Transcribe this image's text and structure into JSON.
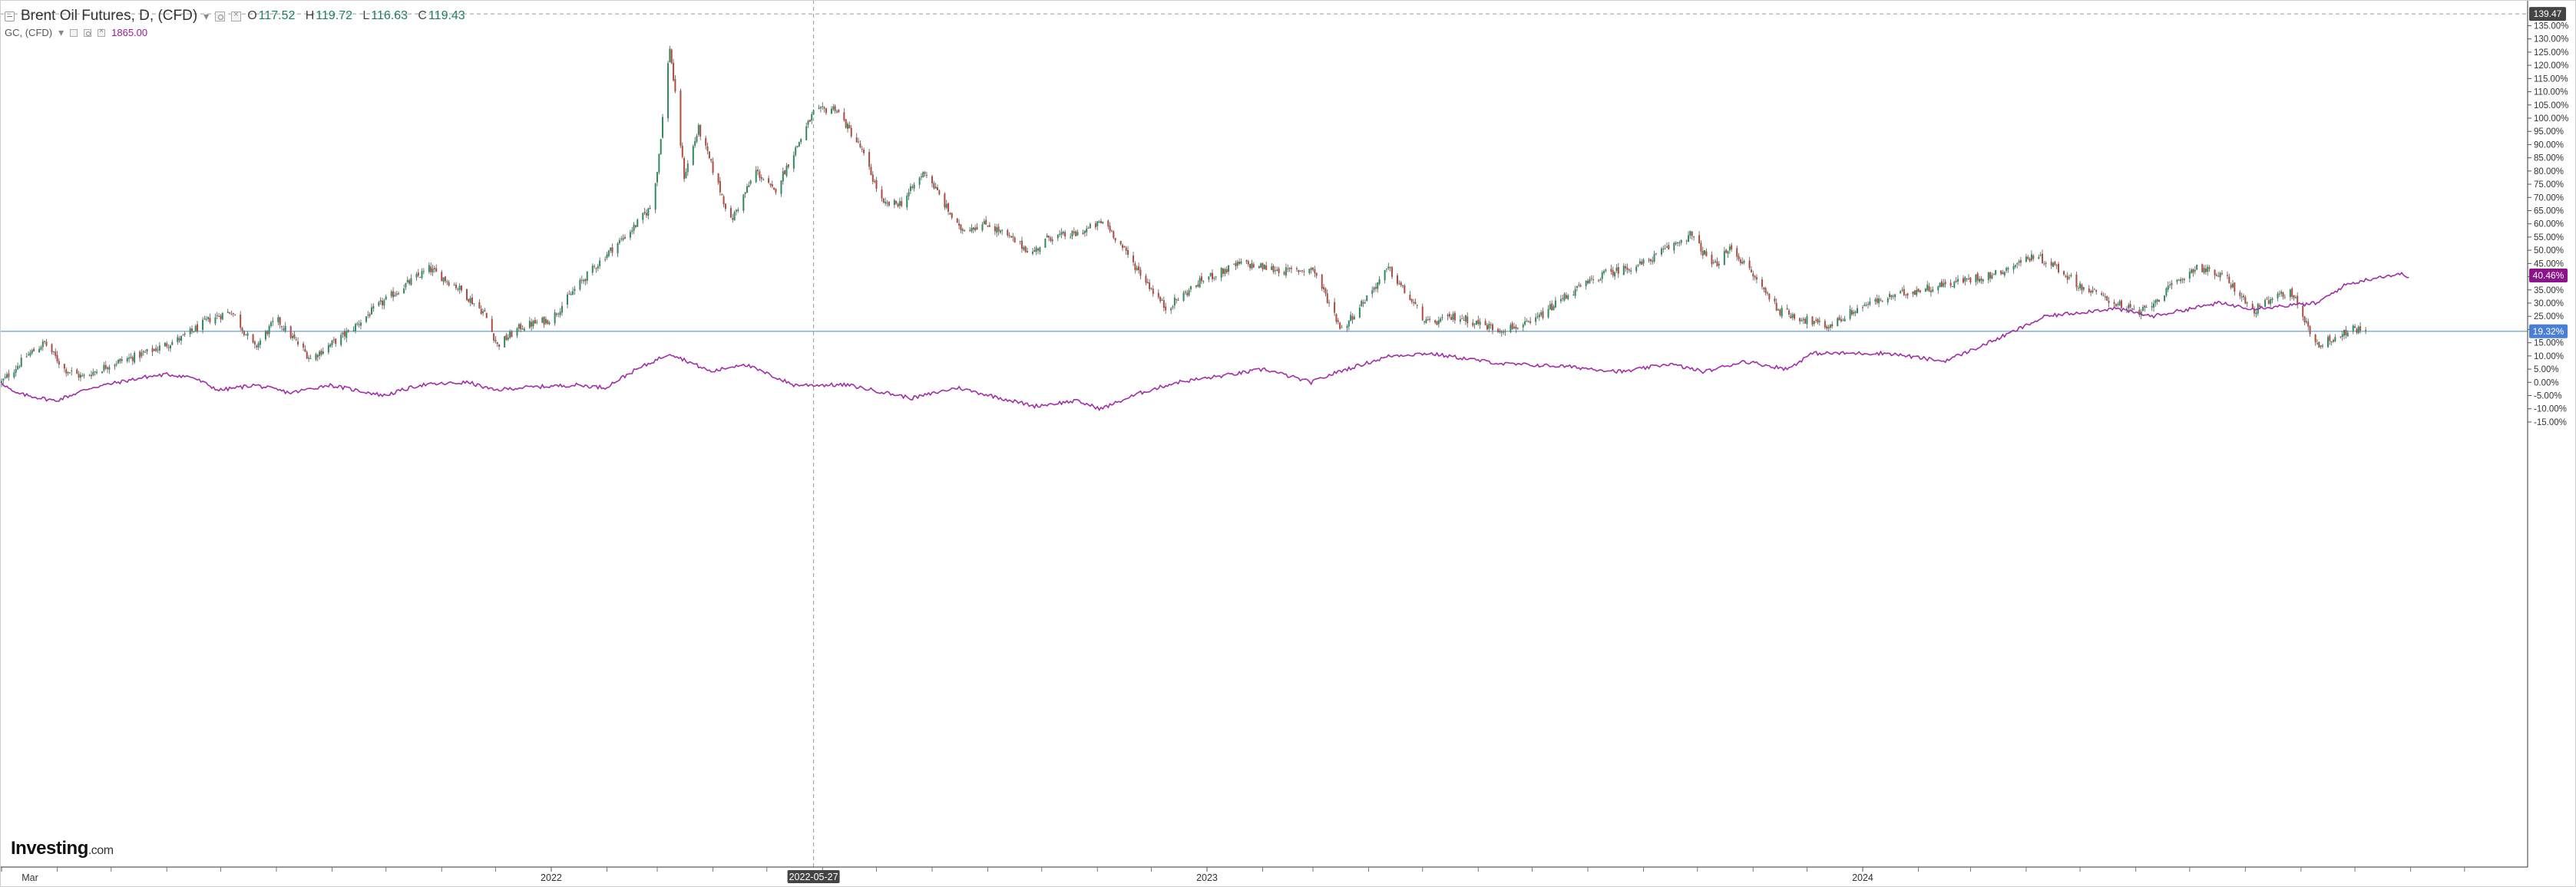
{
  "legend": {
    "main": {
      "symbol": "Brent Oil Futures, D, (CFD)",
      "caret": "▾",
      "o_label": "O",
      "o_value": "117.52",
      "h_label": "H",
      "h_value": "119.72",
      "l_label": "L",
      "l_value": "116.63",
      "c_label": "C",
      "c_value": "119.43"
    },
    "compare": {
      "symbol": "GC, (CFD)",
      "caret": "▾",
      "value": "1865.00"
    }
  },
  "logo": {
    "brand": "Investing",
    "suffix": ".com"
  },
  "colors": {
    "up": "#2f8a5e",
    "down": "#b04a3c",
    "wick": "#555555",
    "compare_line": "#a12ea8",
    "crosshair": "#9a9a9a",
    "price_line": "#7fb2d6",
    "price_badge": "#4a7fd6",
    "compare_badge": "#8b148b",
    "current_badge": "#444444"
  },
  "chart_data": {
    "type": "line",
    "y_axis_unit": "%",
    "ylim": [
      -15,
      139.47
    ],
    "y_ticks": [
      135,
      130,
      125,
      120,
      115,
      110,
      105,
      100,
      95,
      90,
      85,
      80,
      75,
      70,
      65,
      60,
      55,
      50,
      45,
      40,
      35,
      30,
      25,
      20,
      15,
      10,
      5,
      0,
      -5,
      -10,
      -15
    ],
    "y_tick_labels": [
      "135.00%",
      "130.00%",
      "125.00%",
      "120.00%",
      "115.00%",
      "110.00%",
      "105.00%",
      "100.00%",
      "95.00%",
      "90.00%",
      "85.00%",
      "80.00%",
      "75.00%",
      "70.00%",
      "65.00%",
      "60.00%",
      "55.00%",
      "50.00%",
      "45.00%",
      "40.00%",
      "35.00%",
      "30.00%",
      "25.00%",
      "20.00%",
      "15.00%",
      "10.00%",
      "5.00%",
      "0.00%",
      "-5.00%",
      "-10.00%",
      "-15.00%"
    ],
    "x_range": [
      "2021-03-01",
      "2024-12-31"
    ],
    "x_ticks": [
      {
        "date": "2021-03-01",
        "label": "Mar"
      },
      {
        "date": "2022-01-01",
        "label": "2022"
      },
      {
        "date": "2023-01-01",
        "label": "2023"
      },
      {
        "date": "2024-01-01",
        "label": "2024"
      }
    ],
    "crosshair": {
      "date": "2022-05-27",
      "label": "2022-05-27",
      "y": 139.47,
      "y_label": "139.47"
    },
    "price_line": {
      "y": 19.32,
      "label": "19.32%"
    },
    "series": [
      {
        "name": "Brent Oil Futures, D, (CFD)",
        "style": "candlestick",
        "points": [
          [
            "2021-03-01",
            0
          ],
          [
            "2021-03-15",
            10
          ],
          [
            "2021-03-25",
            15
          ],
          [
            "2021-04-05",
            5
          ],
          [
            "2021-04-15",
            2
          ],
          [
            "2021-05-01",
            7
          ],
          [
            "2021-05-20",
            11
          ],
          [
            "2021-06-10",
            17
          ],
          [
            "2021-06-25",
            24
          ],
          [
            "2021-07-07",
            27
          ],
          [
            "2021-07-20",
            13
          ],
          [
            "2021-08-01",
            24
          ],
          [
            "2021-08-20",
            9
          ],
          [
            "2021-09-10",
            19
          ],
          [
            "2021-09-25",
            28
          ],
          [
            "2021-10-10",
            36
          ],
          [
            "2021-10-25",
            43
          ],
          [
            "2021-11-10",
            36
          ],
          [
            "2021-11-25",
            26
          ],
          [
            "2021-12-02",
            14
          ],
          [
            "2021-12-15",
            21
          ],
          [
            "2022-01-01",
            24
          ],
          [
            "2022-01-15",
            36
          ],
          [
            "2022-01-31",
            48
          ],
          [
            "2022-02-15",
            58
          ],
          [
            "2022-02-25",
            66
          ],
          [
            "2022-03-01",
            80
          ],
          [
            "2022-03-08",
            127
          ],
          [
            "2022-03-16",
            78
          ],
          [
            "2022-03-24",
            96
          ],
          [
            "2022-04-11",
            61
          ],
          [
            "2022-04-25",
            80
          ],
          [
            "2022-05-05",
            72
          ],
          [
            "2022-05-27",
            102
          ],
          [
            "2022-06-08",
            104
          ],
          [
            "2022-06-22",
            89
          ],
          [
            "2022-07-05",
            67
          ],
          [
            "2022-07-15",
            68
          ],
          [
            "2022-07-28",
            80
          ],
          [
            "2022-08-16",
            58
          ],
          [
            "2022-09-01",
            60
          ],
          [
            "2022-09-26",
            49
          ],
          [
            "2022-10-05",
            55
          ],
          [
            "2022-10-20",
            56
          ],
          [
            "2022-11-05",
            61
          ],
          [
            "2022-11-20",
            46
          ],
          [
            "2022-12-09",
            28
          ],
          [
            "2022-12-30",
            39
          ],
          [
            "2023-01-20",
            45
          ],
          [
            "2023-02-15",
            42
          ],
          [
            "2023-03-01",
            43
          ],
          [
            "2023-03-17",
            20
          ],
          [
            "2023-04-03",
            35
          ],
          [
            "2023-04-12",
            43
          ],
          [
            "2023-05-04",
            22
          ],
          [
            "2023-05-20",
            25
          ],
          [
            "2023-06-12",
            20
          ],
          [
            "2023-06-30",
            22
          ],
          [
            "2023-07-20",
            33
          ],
          [
            "2023-08-10",
            41
          ],
          [
            "2023-09-01",
            45
          ],
          [
            "2023-09-27",
            56
          ],
          [
            "2023-10-10",
            44
          ],
          [
            "2023-10-20",
            51
          ],
          [
            "2023-11-16",
            27
          ],
          [
            "2023-12-12",
            21
          ],
          [
            "2024-01-01",
            29
          ],
          [
            "2024-01-25",
            34
          ],
          [
            "2024-02-15",
            37
          ],
          [
            "2024-03-15",
            41
          ],
          [
            "2024-04-05",
            48
          ],
          [
            "2024-04-15",
            45
          ],
          [
            "2024-05-02",
            36
          ],
          [
            "2024-06-03",
            26
          ],
          [
            "2024-07-05",
            44
          ],
          [
            "2024-07-22",
            39
          ],
          [
            "2024-08-05",
            27
          ],
          [
            "2024-08-26",
            35
          ],
          [
            "2024-09-10",
            14
          ],
          [
            "2024-09-30",
            20
          ],
          [
            "2024-10-07",
            20
          ]
        ]
      },
      {
        "name": "GC, (CFD)",
        "style": "line",
        "points": [
          [
            "2021-03-01",
            0
          ],
          [
            "2021-03-08",
            -4
          ],
          [
            "2021-03-31",
            -7
          ],
          [
            "2021-04-20",
            -2
          ],
          [
            "2021-05-20",
            2
          ],
          [
            "2021-06-01",
            3
          ],
          [
            "2021-06-15",
            2
          ],
          [
            "2021-06-30",
            -3
          ],
          [
            "2021-07-20",
            -1
          ],
          [
            "2021-08-09",
            -4
          ],
          [
            "2021-08-30",
            -1
          ],
          [
            "2021-09-30",
            -5
          ],
          [
            "2021-10-20",
            -1
          ],
          [
            "2021-11-16",
            0
          ],
          [
            "2021-11-30",
            -3
          ],
          [
            "2021-12-15",
            -2
          ],
          [
            "2022-01-15",
            -1
          ],
          [
            "2022-01-31",
            -2
          ],
          [
            "2022-02-15",
            4
          ],
          [
            "2022-03-08",
            11
          ],
          [
            "2022-03-31",
            4
          ],
          [
            "2022-04-18",
            7
          ],
          [
            "2022-05-16",
            -1
          ],
          [
            "2022-06-15",
            -1
          ],
          [
            "2022-07-21",
            -6
          ],
          [
            "2022-08-15",
            -2
          ],
          [
            "2022-09-27",
            -9
          ],
          [
            "2022-10-20",
            -7
          ],
          [
            "2022-11-03",
            -10
          ],
          [
            "2022-11-25",
            -4
          ],
          [
            "2022-12-15",
            0
          ],
          [
            "2023-01-15",
            3
          ],
          [
            "2023-02-02",
            5
          ],
          [
            "2023-02-28",
            0
          ],
          [
            "2023-03-15",
            4
          ],
          [
            "2023-04-13",
            10
          ],
          [
            "2023-05-04",
            11
          ],
          [
            "2023-06-15",
            7
          ],
          [
            "2023-07-20",
            6
          ],
          [
            "2023-08-21",
            4
          ],
          [
            "2023-09-15",
            7
          ],
          [
            "2023-10-05",
            4
          ],
          [
            "2023-10-27",
            8
          ],
          [
            "2023-11-20",
            5
          ],
          [
            "2023-12-04",
            11
          ],
          [
            "2024-01-15",
            11
          ],
          [
            "2024-02-15",
            8
          ],
          [
            "2024-03-01",
            12
          ],
          [
            "2024-03-21",
            18
          ],
          [
            "2024-04-12",
            25
          ],
          [
            "2024-05-20",
            28
          ],
          [
            "2024-06-10",
            25
          ],
          [
            "2024-07-17",
            30
          ],
          [
            "2024-08-05",
            28
          ],
          [
            "2024-09-10",
            30
          ],
          [
            "2024-09-26",
            37
          ],
          [
            "2024-10-15",
            40
          ],
          [
            "2024-10-28",
            41
          ],
          [
            "2024-10-31",
            40
          ]
        ]
      }
    ],
    "last_values": [
      {
        "series": "GC, (CFD)",
        "y": 40.46,
        "label": "40.46%"
      }
    ],
    "grid": false,
    "legend_position": "top-left"
  }
}
